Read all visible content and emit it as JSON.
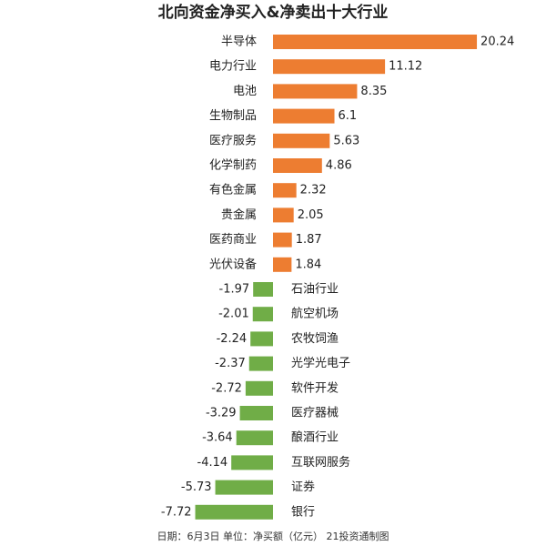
{
  "chart_data": {
    "type": "diverging-bar",
    "title": "北向资金净买入&净卖出十大行业",
    "footer": "日期：6月3日 单位：净买额（亿元） 21投资通制图",
    "categories": [
      "半导体",
      "电力行业",
      "电池",
      "生物制品",
      "医疗服务",
      "化学制药",
      "有色金属",
      "贵金属",
      "医药商业",
      "光伏设备",
      "石油行业",
      "航空机场",
      "农牧饲渔",
      "光学光电子",
      "软件开发",
      "医疗器械",
      "酿酒行业",
      "互联网服务",
      "证券",
      "银行"
    ],
    "values": [
      20.24,
      11.12,
      8.35,
      6.1,
      5.63,
      4.86,
      2.32,
      2.05,
      1.87,
      1.84,
      -1.97,
      -2.01,
      -2.24,
      -2.37,
      -2.72,
      -3.29,
      -3.64,
      -4.14,
      -5.73,
      -7.72
    ],
    "positive_color": "#ed7d31",
    "negative_color": "#70ad47"
  }
}
